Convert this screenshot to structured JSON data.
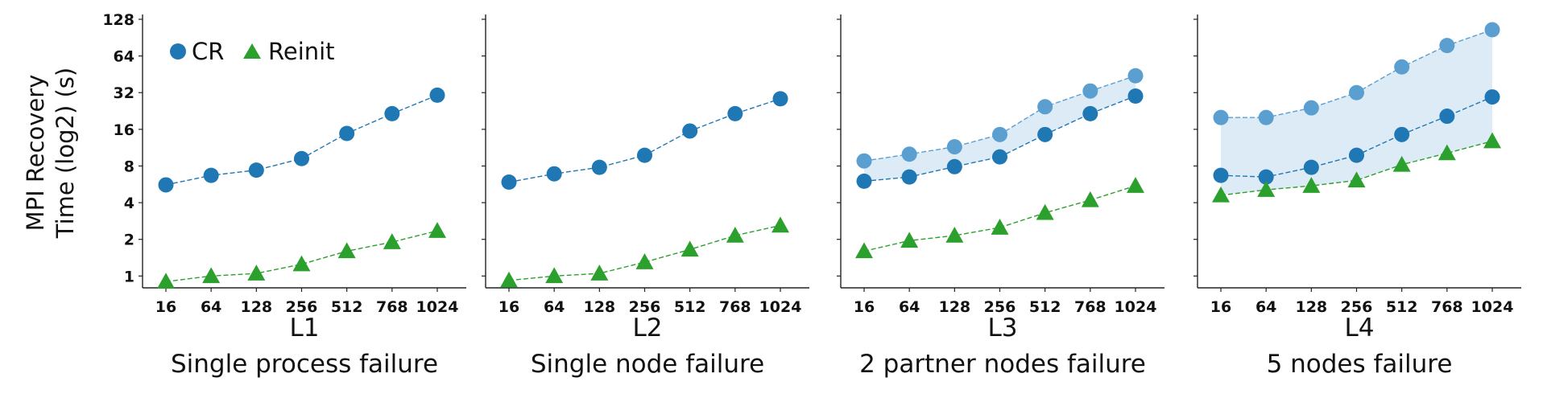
{
  "figure": {
    "ylabel_line1": "MPI Recovery",
    "ylabel_line2": "Time (log2) (s)",
    "legend": [
      {
        "label": "CR",
        "marker": "circle",
        "color": "#1f77b4"
      },
      {
        "label": "Reinit",
        "marker": "triangle",
        "color": "#2ca02c"
      }
    ]
  },
  "chart_data": [
    {
      "type": "line",
      "title": "L1",
      "subtitle": "Single process failure",
      "xlabel": "",
      "ylabel": "MPI Recovery Time (log2) (s)",
      "yscale": "log2",
      "ylim": [
        0.8,
        128
      ],
      "yticks": [
        1,
        2,
        4,
        8,
        16,
        32,
        64,
        128
      ],
      "categories": [
        "16",
        "64",
        "128",
        "256",
        "512",
        "768",
        "1024"
      ],
      "series": [
        {
          "name": "CR",
          "values": [
            5.6,
            6.7,
            7.4,
            9.2,
            14.8,
            21.5,
            30.5
          ],
          "color": "#1f77b4",
          "marker": "circle"
        },
        {
          "name": "Reinit",
          "values": [
            0.9,
            1.0,
            1.05,
            1.25,
            1.6,
            1.9,
            2.35
          ],
          "color": "#2ca02c",
          "marker": "triangle"
        }
      ],
      "band": null,
      "grid": false,
      "legend_position": "top-left"
    },
    {
      "type": "line",
      "title": "L2",
      "subtitle": "Single node failure",
      "xlabel": "",
      "yscale": "log2",
      "ylim": [
        0.8,
        128
      ],
      "categories": [
        "16",
        "64",
        "128",
        "256",
        "512",
        "768",
        "1024"
      ],
      "series": [
        {
          "name": "CR",
          "values": [
            5.9,
            6.9,
            7.8,
            9.8,
            15.5,
            21.5,
            28.5
          ],
          "color": "#1f77b4",
          "marker": "circle"
        },
        {
          "name": "Reinit",
          "values": [
            0.92,
            1.0,
            1.05,
            1.3,
            1.65,
            2.15,
            2.6
          ],
          "color": "#2ca02c",
          "marker": "triangle"
        }
      ],
      "band": null,
      "grid": false
    },
    {
      "type": "line",
      "title": "L3",
      "subtitle": "2 partner nodes failure",
      "xlabel": "",
      "yscale": "log2",
      "ylim": [
        0.8,
        128
      ],
      "categories": [
        "16",
        "64",
        "128",
        "256",
        "512",
        "768",
        "1024"
      ],
      "series": [
        {
          "name": "CR (upper)",
          "values": [
            8.8,
            10.0,
            11.5,
            14.5,
            24.5,
            33.0,
            44.0
          ],
          "color": "#5b9fd0",
          "marker": "circle"
        },
        {
          "name": "CR",
          "values": [
            6.0,
            6.5,
            7.9,
            9.5,
            14.5,
            21.5,
            30.0
          ],
          "color": "#1f77b4",
          "marker": "circle"
        },
        {
          "name": "Reinit",
          "values": [
            1.6,
            1.95,
            2.15,
            2.5,
            3.3,
            4.2,
            5.5
          ],
          "color": "#2ca02c",
          "marker": "triangle"
        }
      ],
      "band": {
        "upper": "CR (upper)",
        "lower": "CR",
        "color": "#cfe3f3"
      },
      "grid": false
    },
    {
      "type": "line",
      "title": "L4",
      "subtitle": "5 nodes failure",
      "xlabel": "",
      "yscale": "log2",
      "ylim": [
        0.8,
        128
      ],
      "categories": [
        "16",
        "64",
        "128",
        "256",
        "512",
        "768",
        "1024"
      ],
      "series": [
        {
          "name": "CR (upper)",
          "values": [
            20.0,
            20.0,
            24.0,
            32.0,
            52.0,
            78.0,
            105.0
          ],
          "color": "#5b9fd0",
          "marker": "circle"
        },
        {
          "name": "CR",
          "values": [
            6.7,
            6.5,
            7.8,
            9.8,
            14.5,
            20.5,
            29.5
          ],
          "color": "#1f77b4",
          "marker": "circle"
        },
        {
          "name": "Reinit",
          "values": [
            4.6,
            5.1,
            5.5,
            6.1,
            8.2,
            10.2,
            12.8
          ],
          "color": "#2ca02c",
          "marker": "triangle"
        }
      ],
      "band": {
        "upper": "CR (upper)",
        "lower": "Reinit",
        "color": "#cfe3f3"
      },
      "grid": false
    }
  ]
}
